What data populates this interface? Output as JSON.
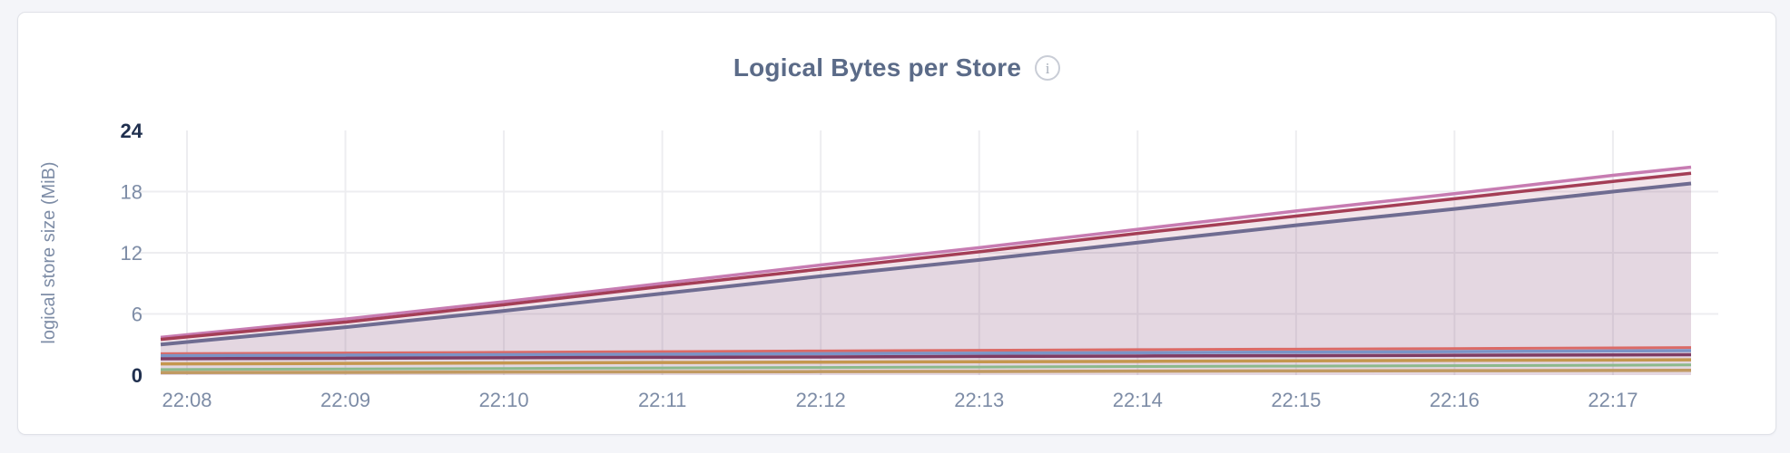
{
  "header": {
    "info_glyph": "i"
  },
  "colors": {
    "page_background": "#f4f5f9",
    "card_background": "#ffffff",
    "card_border": "#e0e2e8",
    "title_text": "#5b6b88",
    "axis_tick_text": "#7d8ca6",
    "axis_tick_text_bold": "#20304f",
    "gridline": "#ededf0",
    "info_icon_ring": "#c9cdd6"
  },
  "chart_data": {
    "type": "area",
    "title": "Logical Bytes per Store",
    "xlabel": "",
    "ylabel": "logical store size (MiB)",
    "units": "MiB",
    "ylim": [
      0,
      24
    ],
    "y_ticks": [
      0,
      6,
      12,
      18,
      24
    ],
    "y_ticks_bold": [
      0,
      24
    ],
    "y_gridlines": [
      6,
      12,
      18
    ],
    "x_tick_labels": [
      "22:08",
      "22:09",
      "22:10",
      "22:11",
      "22:12",
      "22:13",
      "22:14",
      "22:15",
      "22:16",
      "22:17"
    ],
    "x_offsets_minutes": [
      0,
      1,
      2,
      3,
      4,
      5,
      6,
      7,
      8,
      9,
      9.5
    ],
    "grid": true,
    "legend": "none",
    "series": [
      {
        "name": "series-orchid",
        "color": "#c77cb2",
        "fill": "rgba(199,124,178,0.10)",
        "line_width": 3.5,
        "values": [
          3.7,
          5.5,
          7.2,
          9.0,
          10.8,
          12.5,
          14.3,
          16.1,
          17.8,
          19.6,
          20.4
        ]
      },
      {
        "name": "series-crimson",
        "color": "#a43e56",
        "fill": "rgba(164,62,86,0.08)",
        "line_width": 3.5,
        "values": [
          3.5,
          5.2,
          6.9,
          8.7,
          10.4,
          12.1,
          13.9,
          15.6,
          17.3,
          19.0,
          19.8
        ]
      },
      {
        "name": "series-slate",
        "color": "#6f6c91",
        "fill": "rgba(111,108,145,0.10)",
        "line_width": 4,
        "values": [
          3.0,
          4.7,
          6.3,
          8.0,
          9.7,
          11.3,
          13.0,
          14.7,
          16.3,
          18.0,
          18.8
        ]
      },
      {
        "name": "series-red",
        "color": "#db6a66",
        "fill": null,
        "line_width": 3,
        "values": [
          2.1,
          2.17,
          2.23,
          2.3,
          2.37,
          2.43,
          2.5,
          2.55,
          2.6,
          2.67,
          2.7
        ]
      },
      {
        "name": "series-steel-blue",
        "color": "#7b93c6",
        "fill": null,
        "line_width": 3.5,
        "values": [
          1.9,
          1.95,
          2.0,
          2.05,
          2.1,
          2.15,
          2.2,
          2.25,
          2.3,
          2.37,
          2.4
        ]
      },
      {
        "name": "series-plum",
        "color": "#7e3c64",
        "fill": null,
        "line_width": 3.5,
        "values": [
          1.6,
          1.65,
          1.7,
          1.74,
          1.78,
          1.83,
          1.87,
          1.9,
          1.94,
          1.98,
          2.0
        ]
      },
      {
        "name": "series-gold",
        "color": "#c5974e",
        "fill": null,
        "line_width": 3.5,
        "values": [
          1.1,
          1.14,
          1.19,
          1.23,
          1.27,
          1.31,
          1.35,
          1.4,
          1.44,
          1.48,
          1.5
        ]
      },
      {
        "name": "series-green",
        "color": "#8cb98c",
        "fill": null,
        "line_width": 3,
        "values": [
          0.55,
          0.6,
          0.65,
          0.7,
          0.75,
          0.79,
          0.84,
          0.88,
          0.92,
          0.97,
          1.0
        ]
      },
      {
        "name": "series-tan",
        "color": "#c09a62",
        "fill": null,
        "line_width": 3.5,
        "values": [
          0.25,
          0.27,
          0.3,
          0.32,
          0.34,
          0.36,
          0.39,
          0.41,
          0.43,
          0.46,
          0.47
        ]
      }
    ]
  }
}
